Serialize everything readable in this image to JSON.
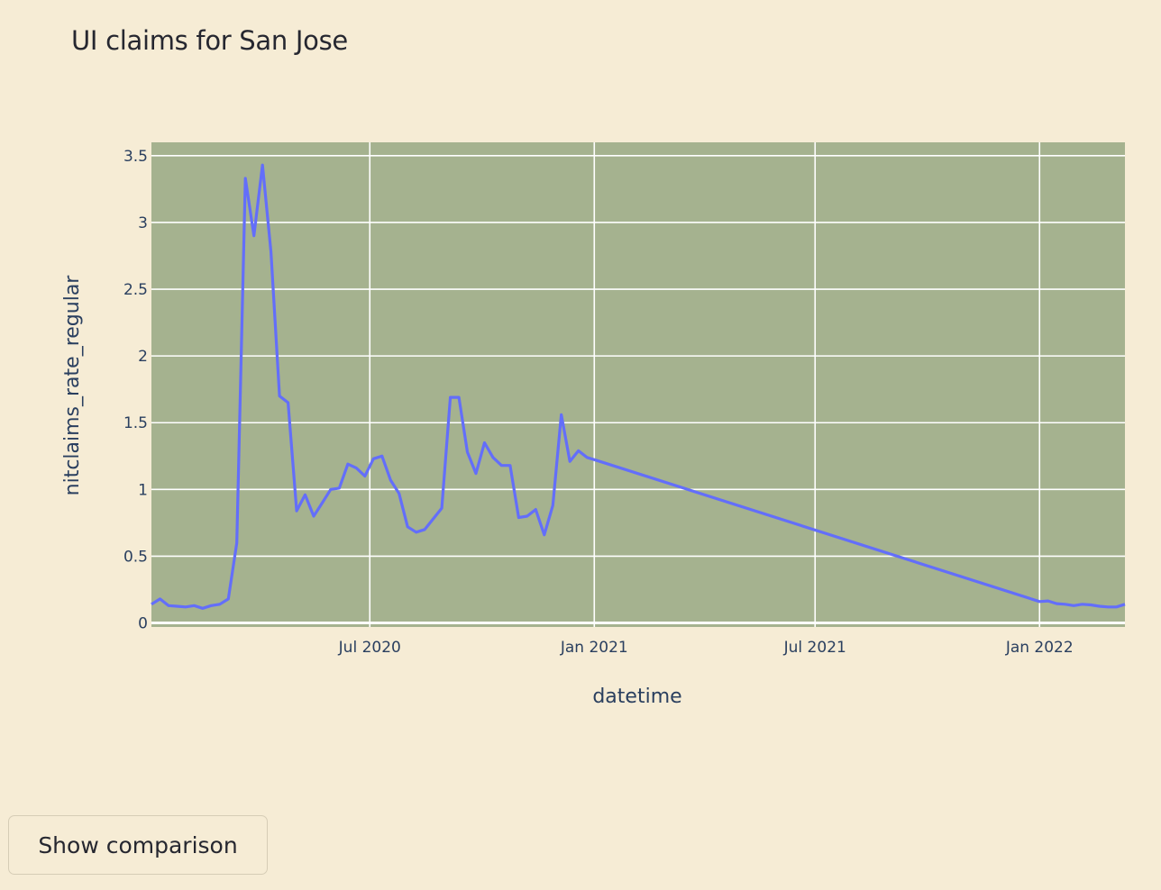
{
  "page": {
    "title": "UI claims for San Jose"
  },
  "buttons": {
    "comparison_label": "Show comparison"
  },
  "colors": {
    "page_background": "#f6ecd5",
    "plot_background": "#a5b28f",
    "grid": "#ffffff",
    "line": "#636efa",
    "text": "#262730"
  },
  "chart_data": {
    "type": "line",
    "title": "",
    "xlabel": "datetime",
    "ylabel": "nitclaims_rate_regular",
    "grid": true,
    "xlim": [
      "2020-01-04",
      "2022-03-12"
    ],
    "ylim": [
      -0.03,
      3.6
    ],
    "x_ticks": [
      {
        "date": "2020-07-01",
        "label": "Jul 2020"
      },
      {
        "date": "2021-01-01",
        "label": "Jan 2021"
      },
      {
        "date": "2021-07-01",
        "label": "Jul 2021"
      },
      {
        "date": "2022-01-01",
        "label": "Jan 2022"
      }
    ],
    "y_ticks": [
      {
        "value": 0,
        "label": "0"
      },
      {
        "value": 0.5,
        "label": "0.5"
      },
      {
        "value": 1,
        "label": "1"
      },
      {
        "value": 1.5,
        "label": "1.5"
      },
      {
        "value": 2,
        "label": "2"
      },
      {
        "value": 2.5,
        "label": "2.5"
      },
      {
        "value": 3,
        "label": "3"
      },
      {
        "value": 3.5,
        "label": "3.5"
      }
    ],
    "series": [
      {
        "x": [
          "2020-01-04",
          "2020-01-11",
          "2020-01-18",
          "2020-01-25",
          "2020-02-01",
          "2020-02-08",
          "2020-02-15",
          "2020-02-22",
          "2020-02-29",
          "2020-03-07",
          "2020-03-14",
          "2020-03-21",
          "2020-03-28",
          "2020-04-04",
          "2020-04-11",
          "2020-04-18",
          "2020-04-25",
          "2020-05-02",
          "2020-05-09",
          "2020-05-16",
          "2020-05-23",
          "2020-05-30",
          "2020-06-06",
          "2020-06-13",
          "2020-06-20",
          "2020-06-27",
          "2020-07-04",
          "2020-07-11",
          "2020-07-18",
          "2020-07-25",
          "2020-08-01",
          "2020-08-08",
          "2020-08-15",
          "2020-08-22",
          "2020-08-29",
          "2020-09-05",
          "2020-09-12",
          "2020-09-19",
          "2020-09-26",
          "2020-10-03",
          "2020-10-10",
          "2020-10-17",
          "2020-10-24",
          "2020-10-31",
          "2020-11-07",
          "2020-11-14",
          "2020-11-21",
          "2020-11-28",
          "2020-12-05",
          "2020-12-12",
          "2020-12-19",
          "2020-12-26",
          "2021-01-02",
          "2022-01-01",
          "2022-01-08",
          "2022-01-15",
          "2022-01-22",
          "2022-01-29",
          "2022-02-05",
          "2022-02-12",
          "2022-02-19",
          "2022-02-26",
          "2022-03-05",
          "2022-03-12"
        ],
        "y": [
          0.14,
          0.18,
          0.13,
          0.125,
          0.12,
          0.13,
          0.11,
          0.13,
          0.14,
          0.18,
          0.6,
          3.33,
          2.9,
          3.43,
          2.78,
          1.7,
          1.65,
          0.84,
          0.96,
          0.8,
          0.9,
          1.0,
          1.01,
          1.19,
          1.16,
          1.1,
          1.23,
          1.25,
          1.07,
          0.97,
          0.72,
          0.68,
          0.7,
          0.78,
          0.86,
          1.69,
          1.69,
          1.28,
          1.12,
          1.35,
          1.24,
          1.18,
          1.18,
          0.79,
          0.8,
          0.85,
          0.66,
          0.88,
          1.56,
          1.21,
          1.29,
          1.24,
          1.22,
          0.16,
          0.165,
          0.145,
          0.14,
          0.13,
          0.14,
          0.135,
          0.125,
          0.12,
          0.12,
          0.14
        ]
      }
    ]
  }
}
